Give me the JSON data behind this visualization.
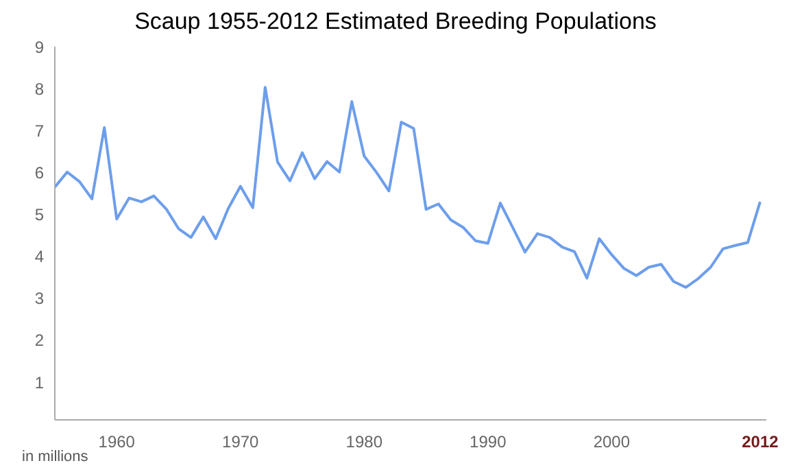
{
  "chart_data": {
    "type": "line",
    "title": "Scaup 1955-2012 Estimated Breeding Populations",
    "annotations": [
      "in millions"
    ],
    "x": [
      1955,
      1956,
      1957,
      1958,
      1959,
      1960,
      1961,
      1962,
      1963,
      1964,
      1965,
      1966,
      1967,
      1968,
      1969,
      1970,
      1971,
      1972,
      1973,
      1974,
      1975,
      1976,
      1977,
      1978,
      1979,
      1980,
      1981,
      1982,
      1983,
      1984,
      1985,
      1986,
      1987,
      1988,
      1989,
      1990,
      1991,
      1992,
      1993,
      1994,
      1995,
      1996,
      1997,
      1998,
      1999,
      2000,
      2001,
      2002,
      2003,
      2004,
      2005,
      2006,
      2007,
      2008,
      2009,
      2010,
      2011,
      2012
    ],
    "series": [
      {
        "color": "#6d9eeb",
        "values": [
          5.65,
          6.01,
          5.78,
          5.37,
          7.07,
          4.89,
          5.39,
          5.3,
          5.44,
          5.13,
          4.66,
          4.45,
          4.94,
          4.42,
          5.13,
          5.67,
          5.16,
          8.03,
          6.25,
          5.8,
          6.47,
          5.85,
          6.26,
          6.01,
          7.69,
          6.39,
          6.0,
          5.56,
          7.2,
          7.05,
          5.12,
          5.25,
          4.87,
          4.69,
          4.37,
          4.31,
          5.27,
          4.69,
          4.1,
          4.54,
          4.45,
          4.22,
          4.11,
          3.48,
          4.42,
          4.04,
          3.71,
          3.54,
          3.74,
          3.81,
          3.4,
          3.26,
          3.47,
          3.74,
          4.18,
          4.26,
          4.33,
          5.3
        ]
      }
    ],
    "xlim": [
      1955,
      2012.5
    ],
    "xticks": [
      1960,
      1970,
      1980,
      1990,
      2000,
      2012
    ],
    "ylim": [
      0.1,
      9
    ],
    "yticks": [
      1,
      2,
      3,
      4,
      5,
      6,
      7,
      8,
      9
    ],
    "grid": false,
    "marker": "none",
    "line_style": "solid"
  }
}
